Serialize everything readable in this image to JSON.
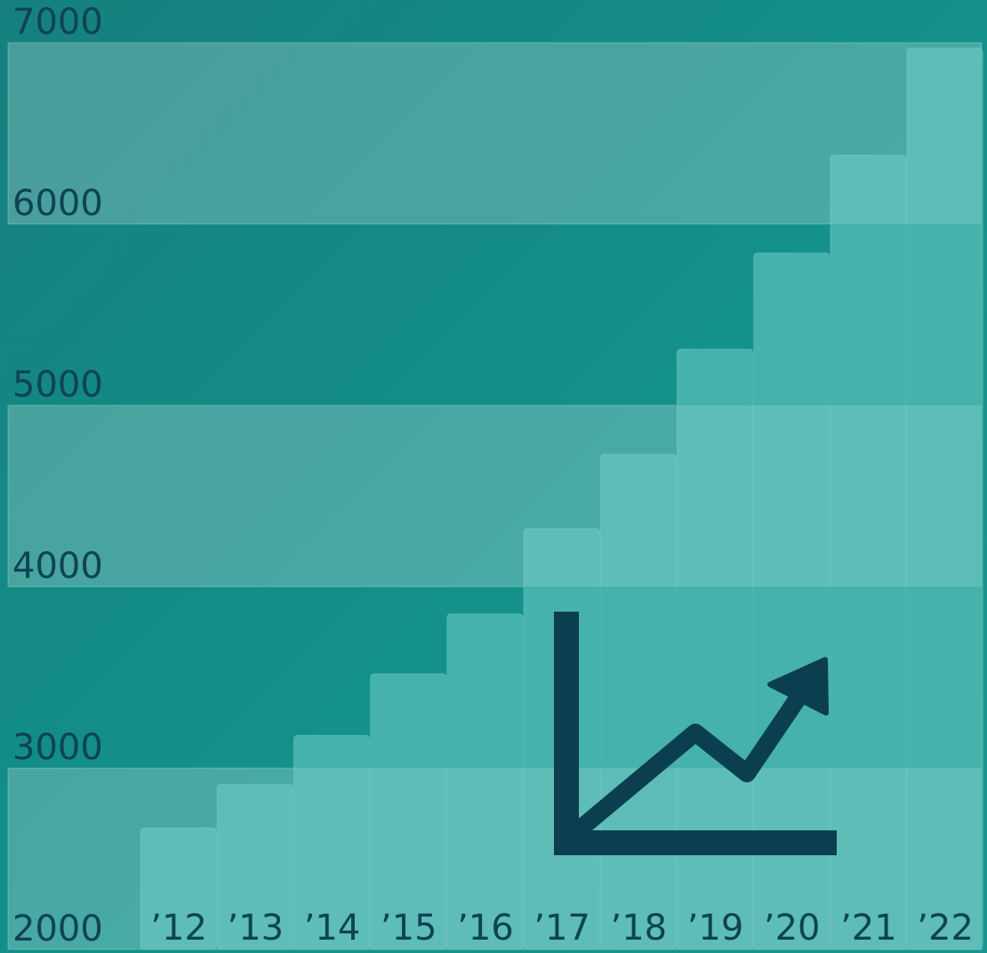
{
  "chart_data": {
    "type": "bar",
    "categories": [
      "’12",
      "’13",
      "’14",
      "’15",
      "’16",
      "’17",
      "’18",
      "’19",
      "’20",
      "’21",
      "’22"
    ],
    "values": [
      2670,
      2910,
      3180,
      3520,
      3850,
      4320,
      4730,
      5310,
      5840,
      6380,
      6970
    ],
    "y_ticks": [
      "2000",
      "3000",
      "4000",
      "5000",
      "6000",
      "7000"
    ],
    "ylim": [
      2000,
      7000
    ],
    "bands": [
      [
        2000,
        3000
      ],
      [
        4000,
        5000
      ],
      [
        6000,
        7000
      ]
    ],
    "icon": "line-chart-up-arrow-icon",
    "colors": {
      "background": "#14918a",
      "bar": "#45b3ac",
      "band": "#ffffff",
      "text": "#0d4453",
      "icon": "#0b3f4f"
    },
    "title": "",
    "xlabel": "",
    "ylabel": ""
  }
}
